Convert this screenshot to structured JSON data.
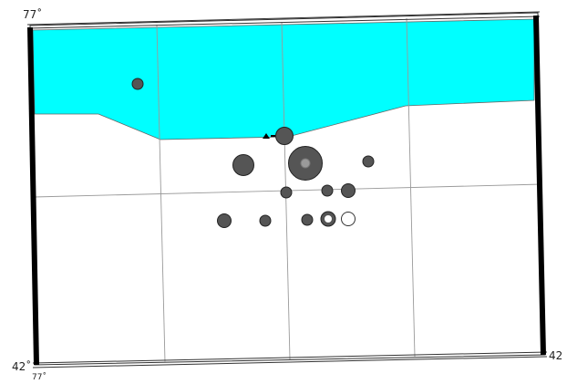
{
  "labels": {
    "top_left": "77˚",
    "bottom_left": "42˚",
    "bottom_left_small": "77˚",
    "right_edge": "42"
  },
  "colors": {
    "water": "#00ffff",
    "land": "#ffffff",
    "grid": "#9a9a9a",
    "frame_dark": "#000000",
    "event_fill": "#555555",
    "event_core": "#9a9a9a",
    "station": "#000000"
  },
  "legend_markers": {
    "station_icon": "triangle-icon",
    "event_icon": "circle-icon"
  }
}
